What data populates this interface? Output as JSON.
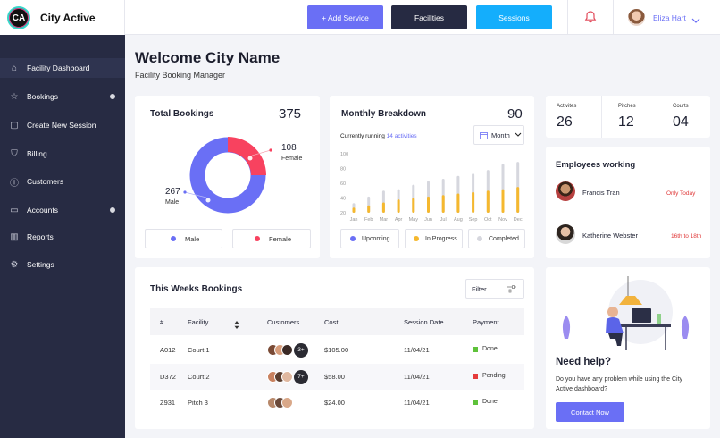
{
  "brand": {
    "logo_text": "CA",
    "name": "City Active"
  },
  "topbar": {
    "add_service": "+ Add Service",
    "facilities": "Facilities",
    "sessions": "Sessions",
    "user_name": "Eliza Hart"
  },
  "sidebar": {
    "items": [
      {
        "label": "Facility Dashboard",
        "icon": "home-icon",
        "active": true,
        "dot": false
      },
      {
        "label": "Bookings",
        "icon": "star-icon",
        "active": false,
        "dot": true
      },
      {
        "label": "Create New Session",
        "icon": "calendar-add-icon",
        "active": false,
        "dot": false
      },
      {
        "label": "Billing",
        "icon": "bag-icon",
        "active": false,
        "dot": false
      },
      {
        "label": "Customers",
        "icon": "info-icon",
        "active": false,
        "dot": false
      },
      {
        "label": "Accounts",
        "icon": "folder-icon",
        "active": false,
        "dot": true
      },
      {
        "label": "Reports",
        "icon": "bar-chart-icon",
        "active": false,
        "dot": false
      },
      {
        "label": "Settings",
        "icon": "gear-icon",
        "active": false,
        "dot": false
      }
    ]
  },
  "welcome": {
    "title": "Welcome City Name",
    "subtitle": "Facility Booking Manager"
  },
  "total_bookings": {
    "title": "Total Bookings",
    "total": "375",
    "female_value": "108",
    "female_label": "Female",
    "male_value": "267",
    "male_label": "Male",
    "legend_male": "Male",
    "legend_female": "Female",
    "colors": {
      "male": "#6a6ff5",
      "female": "#f8425f"
    }
  },
  "monthly": {
    "title": "Monthly Breakdown",
    "total": "90",
    "running_prefix": "Currently running",
    "running_link": "14 activities",
    "dropdown": "Month",
    "legend_upcoming": "Upcoming",
    "legend_progress": "In Progress",
    "legend_completed": "Completed",
    "colors": {
      "upcoming": "#6a6ff5",
      "progress": "#f5b82e",
      "completed": "#d6d7de"
    }
  },
  "chart_data": {
    "type": "bar",
    "categories": [
      "Jan",
      "Feb",
      "Mar",
      "Apr",
      "May",
      "Jun",
      "Jul",
      "Aug",
      "Sep",
      "Oct",
      "Nov",
      "Dec"
    ],
    "yticks": [
      20,
      40,
      60,
      80,
      100
    ],
    "ylim": [
      20,
      100
    ],
    "series": [
      {
        "name": "In Progress",
        "values": [
          27,
          30,
          34,
          38,
          40,
          42,
          44,
          46,
          48,
          50,
          52,
          55
        ]
      },
      {
        "name": "Completed",
        "values": [
          33,
          42,
          50,
          52,
          58,
          63,
          66,
          70,
          73,
          78,
          86,
          89
        ]
      }
    ]
  },
  "stats": [
    {
      "label": "Activites",
      "value": "26"
    },
    {
      "label": "Pitches",
      "value": "12"
    },
    {
      "label": "Courts",
      "value": "04"
    }
  ],
  "employees": {
    "title": "Employees working",
    "list": [
      {
        "name": "Francis Tran",
        "status": "Only Today"
      },
      {
        "name": "Katherine Webster",
        "status": "16th to 18th"
      }
    ]
  },
  "week_bookings": {
    "title": "This Weeks Bookings",
    "filter": "Filter",
    "headers": [
      "#",
      "Facility",
      "Customers",
      "Cost",
      "Session Date",
      "Payment"
    ],
    "rows": [
      {
        "id": "A012",
        "facility": "Court 1",
        "more": "3+",
        "cost": "$105.00",
        "date": "11/04/21",
        "payment": "Done",
        "pay_color": "#5ec23a"
      },
      {
        "id": "D372",
        "facility": "Court 2",
        "more": "7+",
        "cost": "$58.00",
        "date": "11/04/21",
        "payment": "Pending",
        "pay_color": "#e53b3b"
      },
      {
        "id": "Z931",
        "facility": "Pitch 3",
        "more": "",
        "cost": "$24.00",
        "date": "11/04/21",
        "payment": "Done",
        "pay_color": "#5ec23a"
      }
    ]
  },
  "help": {
    "title": "Need help?",
    "text": "Do you have any problem while using the City Active dashboard?",
    "button": "Contact Now"
  }
}
